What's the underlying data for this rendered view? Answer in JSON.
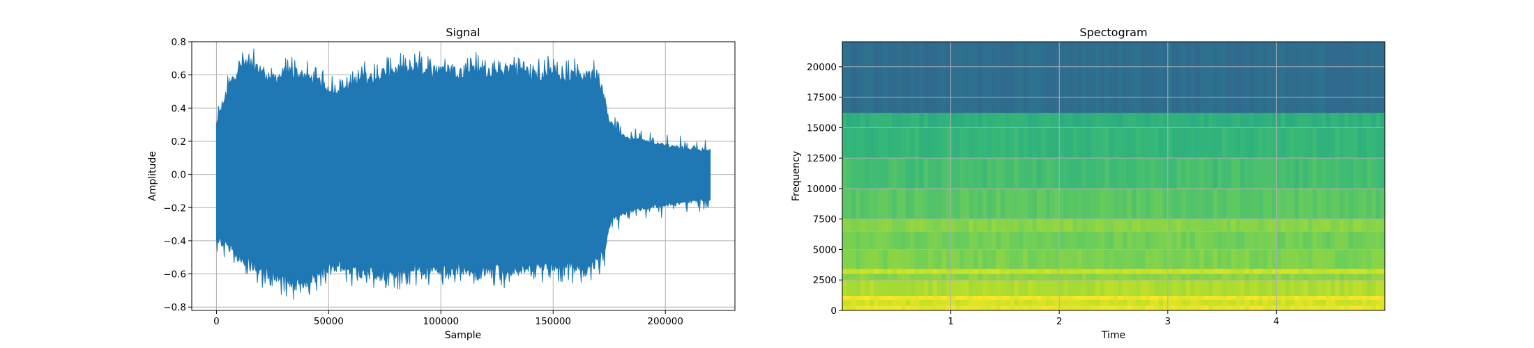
{
  "chart_data": [
    {
      "type": "area",
      "title": "Signal",
      "xlabel": "Sample",
      "ylabel": "Amplitude",
      "xlim": [
        -11000,
        231000
      ],
      "ylim": [
        -0.82,
        0.8
      ],
      "xticks": [
        0,
        50000,
        100000,
        150000,
        200000
      ],
      "xtick_labels": [
        "0",
        "50000",
        "100000",
        "150000",
        "200000"
      ],
      "yticks": [
        -0.8,
        -0.6,
        -0.4,
        -0.2,
        0.0,
        0.2,
        0.4,
        0.6,
        0.8
      ],
      "ytick_labels": [
        "−0.8",
        "−0.6",
        "−0.4",
        "−0.2",
        "0.0",
        "0.2",
        "0.4",
        "0.6",
        "0.8"
      ],
      "grid": true,
      "color": "#1f77b4",
      "series": [
        {
          "x": [
            0,
            2000,
            5000,
            10000,
            15000,
            20000,
            25000,
            30000,
            35000,
            40000,
            45000,
            50000,
            55000,
            60000,
            65000,
            70000,
            75000,
            80000,
            85000,
            90000,
            95000,
            100000,
            105000,
            110000,
            115000,
            120000,
            125000,
            130000,
            135000,
            140000,
            145000,
            150000,
            155000,
            160000,
            165000,
            170000,
            173000,
            175000,
            177000,
            180000,
            185000,
            190000,
            195000,
            200000,
            205000,
            210000,
            215000,
            220000
          ],
          "upper": [
            0.32,
            0.42,
            0.55,
            0.7,
            0.72,
            0.68,
            0.62,
            0.65,
            0.66,
            0.64,
            0.6,
            0.56,
            0.55,
            0.58,
            0.64,
            0.62,
            0.66,
            0.68,
            0.68,
            0.7,
            0.66,
            0.69,
            0.68,
            0.66,
            0.69,
            0.67,
            0.65,
            0.7,
            0.68,
            0.66,
            0.65,
            0.67,
            0.64,
            0.66,
            0.64,
            0.65,
            0.5,
            0.35,
            0.3,
            0.26,
            0.23,
            0.22,
            0.2,
            0.19,
            0.18,
            0.17,
            0.16,
            0.16
          ],
          "lower": [
            -0.42,
            -0.44,
            -0.46,
            -0.55,
            -0.58,
            -0.64,
            -0.66,
            -0.68,
            -0.72,
            -0.7,
            -0.66,
            -0.62,
            -0.6,
            -0.62,
            -0.65,
            -0.65,
            -0.66,
            -0.64,
            -0.62,
            -0.63,
            -0.62,
            -0.64,
            -0.63,
            -0.62,
            -0.66,
            -0.64,
            -0.61,
            -0.64,
            -0.62,
            -0.6,
            -0.61,
            -0.6,
            -0.6,
            -0.62,
            -0.6,
            -0.58,
            -0.5,
            -0.35,
            -0.28,
            -0.27,
            -0.24,
            -0.22,
            -0.21,
            -0.2,
            -0.19,
            -0.18,
            -0.17,
            -0.16
          ]
        }
      ]
    },
    {
      "type": "heatmap",
      "title": "Spectogram",
      "xlabel": "Time",
      "ylabel": "Frequency",
      "xlim": [
        0,
        5.0
      ],
      "ylim": [
        0,
        22050
      ],
      "xticks": [
        1,
        2,
        3,
        4
      ],
      "xtick_labels": [
        "1",
        "2",
        "3",
        "4"
      ],
      "yticks": [
        0,
        2500,
        5000,
        7500,
        10000,
        12500,
        15000,
        17500,
        20000
      ],
      "ytick_labels": [
        "0",
        "2500",
        "5000",
        "7500",
        "10000",
        "12500",
        "15000",
        "17500",
        "20000"
      ],
      "grid": true,
      "colormap": "viridis",
      "bands": [
        {
          "from": 0,
          "to": 400,
          "level": 0.97
        },
        {
          "from": 400,
          "to": 900,
          "level": 0.93
        },
        {
          "from": 900,
          "to": 1200,
          "level": 0.98
        },
        {
          "from": 1200,
          "to": 2500,
          "level": 0.88
        },
        {
          "from": 2500,
          "to": 3000,
          "level": 0.82
        },
        {
          "from": 3000,
          "to": 3400,
          "level": 0.92
        },
        {
          "from": 3400,
          "to": 5000,
          "level": 0.8
        },
        {
          "from": 5000,
          "to": 6500,
          "level": 0.78
        },
        {
          "from": 6500,
          "to": 7500,
          "level": 0.82
        },
        {
          "from": 7500,
          "to": 10000,
          "level": 0.74
        },
        {
          "from": 10000,
          "to": 12500,
          "level": 0.7
        },
        {
          "from": 12500,
          "to": 15000,
          "level": 0.66
        },
        {
          "from": 15000,
          "to": 16200,
          "level": 0.64
        },
        {
          "from": 16200,
          "to": 22050,
          "level": 0.36
        }
      ]
    }
  ]
}
